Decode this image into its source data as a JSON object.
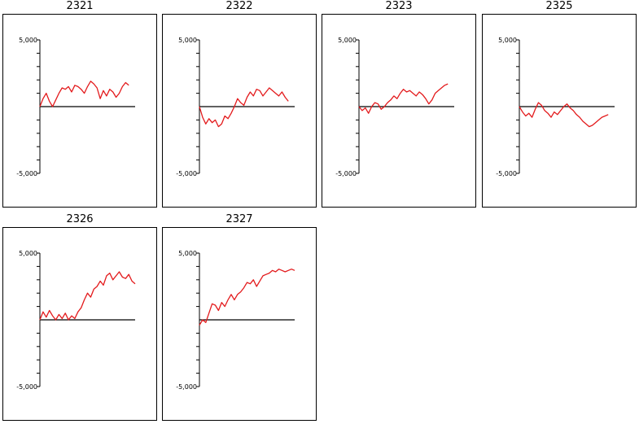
{
  "colors": {
    "series": "#e31a1c",
    "axis": "#000000",
    "frame": "#000000"
  },
  "chart_data": [
    {
      "type": "line",
      "title": "2321",
      "ylim": [
        -5000,
        5000
      ],
      "yticklabels": [
        "5,000",
        "-5,000"
      ],
      "x": [
        0,
        1,
        2,
        3,
        4,
        5,
        6,
        7,
        8,
        9,
        10,
        11,
        12,
        13,
        14,
        15,
        16,
        17,
        18,
        19,
        20,
        21,
        22,
        23,
        24,
        25,
        26,
        27,
        28
      ],
      "values": [
        0,
        600,
        1000,
        400,
        0,
        500,
        1000,
        1400,
        1300,
        1500,
        1100,
        1600,
        1500,
        1300,
        1000,
        1500,
        1900,
        1700,
        1400,
        600,
        1200,
        800,
        1300,
        1100,
        700,
        1000,
        1500,
        1800,
        1600
      ]
    },
    {
      "type": "line",
      "title": "2322",
      "ylim": [
        -5000,
        5000
      ],
      "yticklabels": [
        "5,000",
        "-5,000"
      ],
      "x": [
        0,
        1,
        2,
        3,
        4,
        5,
        6,
        7,
        8,
        9,
        10,
        11,
        12,
        13,
        14,
        15,
        16,
        17,
        18,
        19,
        20,
        21,
        22,
        23,
        24,
        25,
        26,
        27,
        28
      ],
      "values": [
        0,
        -800,
        -1300,
        -900,
        -1200,
        -1000,
        -1500,
        -1300,
        -700,
        -900,
        -500,
        0,
        600,
        300,
        100,
        700,
        1100,
        800,
        1300,
        1200,
        800,
        1100,
        1400,
        1200,
        1000,
        800,
        1100,
        700,
        400
      ]
    },
    {
      "type": "line",
      "title": "2323",
      "ylim": [
        -5000,
        5000
      ],
      "yticklabels": [
        "5,000",
        "-5,000"
      ],
      "x": [
        0,
        1,
        2,
        3,
        4,
        5,
        6,
        7,
        8,
        9,
        10,
        11,
        12,
        13,
        14,
        15,
        16,
        17,
        18,
        19,
        20,
        21,
        22,
        23,
        24,
        25,
        26,
        27,
        28
      ],
      "values": [
        0,
        -300,
        -100,
        -500,
        0,
        300,
        200,
        -200,
        0,
        300,
        500,
        800,
        600,
        1000,
        1300,
        1100,
        1200,
        1000,
        800,
        1100,
        900,
        600,
        200,
        500,
        1000,
        1200,
        1400,
        1600,
        1700
      ]
    },
    {
      "type": "line",
      "title": "2325",
      "ylim": [
        -5000,
        5000
      ],
      "yticklabels": [
        "5,000",
        "-5,000"
      ],
      "x": [
        0,
        1,
        2,
        3,
        4,
        5,
        6,
        7,
        8,
        9,
        10,
        11,
        12,
        13,
        14,
        15,
        16,
        17,
        18,
        19,
        20,
        21,
        22,
        23,
        24,
        25,
        26,
        27,
        28
      ],
      "values": [
        0,
        -400,
        -700,
        -500,
        -800,
        -200,
        300,
        100,
        -300,
        -500,
        -800,
        -400,
        -600,
        -300,
        0,
        200,
        -100,
        -300,
        -600,
        -800,
        -1100,
        -1300,
        -1500,
        -1400,
        -1200,
        -1000,
        -800,
        -700,
        -600
      ]
    },
    {
      "type": "line",
      "title": "2326",
      "ylim": [
        -5000,
        5000
      ],
      "yticklabels": [
        "5,000",
        "-5,000"
      ],
      "x": [
        0,
        1,
        2,
        3,
        4,
        5,
        6,
        7,
        8,
        9,
        10,
        11,
        12,
        13,
        14,
        15,
        16,
        17,
        18,
        19,
        20,
        21,
        22,
        23,
        24,
        25,
        26,
        27,
        28,
        29,
        30
      ],
      "values": [
        0,
        600,
        200,
        700,
        300,
        0,
        400,
        100,
        500,
        0,
        300,
        100,
        600,
        900,
        1500,
        2000,
        1700,
        2300,
        2500,
        2900,
        2600,
        3300,
        3500,
        3000,
        3300,
        3600,
        3200,
        3100,
        3400,
        2900,
        2700
      ]
    },
    {
      "type": "line",
      "title": "2327",
      "ylim": [
        -5000,
        5000
      ],
      "yticklabels": [
        "5,000",
        "-5,000"
      ],
      "x": [
        0,
        1,
        2,
        3,
        4,
        5,
        6,
        7,
        8,
        9,
        10,
        11,
        12,
        13,
        14,
        15,
        16,
        17,
        18,
        19,
        20,
        21,
        22,
        23,
        24,
        25,
        26,
        27,
        28,
        29,
        30
      ],
      "values": [
        -400,
        0,
        -200,
        500,
        1200,
        1100,
        700,
        1300,
        1000,
        1500,
        1900,
        1500,
        1900,
        2100,
        2400,
        2800,
        2700,
        3000,
        2500,
        2900,
        3300,
        3400,
        3500,
        3700,
        3600,
        3800,
        3700,
        3600,
        3700,
        3800,
        3700
      ]
    }
  ]
}
